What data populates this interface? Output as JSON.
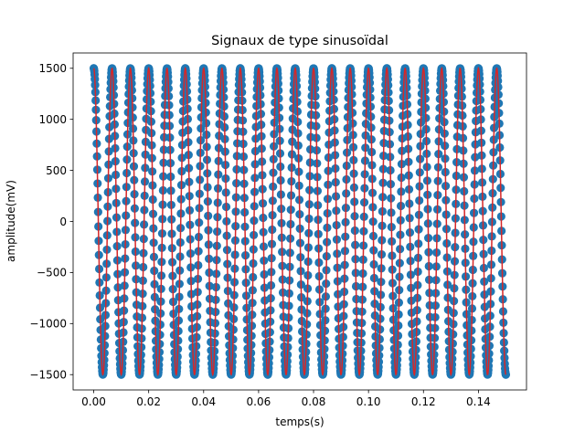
{
  "chart_data": {
    "type": "line",
    "title": "Signaux de type sinusoïdal",
    "xlabel": "temps(s)",
    "ylabel": "amplitude(mV)",
    "xlim": [
      -0.0075,
      0.1575
    ],
    "ylim": [
      -1650,
      1650
    ],
    "x_ticks": [
      0.0,
      0.02,
      0.04,
      0.06,
      0.08,
      0.1,
      0.12,
      0.14
    ],
    "x_tick_labels": [
      "0.00",
      "0.02",
      "0.04",
      "0.06",
      "0.08",
      "0.10",
      "0.12",
      "0.14"
    ],
    "y_ticks": [
      -1500,
      -1000,
      -500,
      0,
      500,
      1000,
      1500
    ],
    "y_tick_labels": [
      "−1500",
      "−1000",
      "−500",
      "0",
      "500",
      "1000",
      "1500"
    ],
    "grid": false,
    "signal": {
      "function": "cosine",
      "amplitude_mV": 1500,
      "frequency_Hz": 150,
      "x_start": 0.0,
      "x_end": 0.15,
      "sample_count": 1500
    },
    "series": [
      {
        "style": "markers",
        "color": "#1f77b4"
      },
      {
        "style": "line",
        "color": "#d62728"
      }
    ]
  }
}
